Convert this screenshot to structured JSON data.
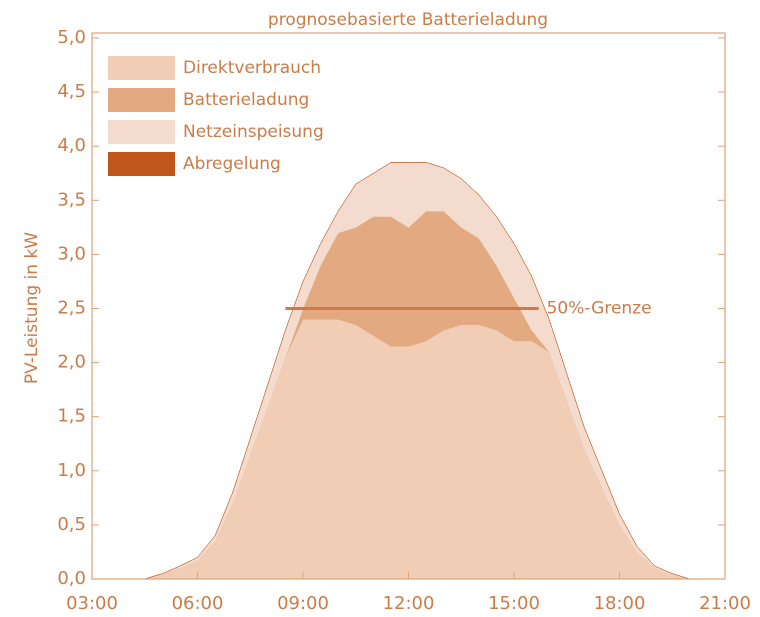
{
  "chart_data": {
    "type": "stacked_area",
    "title": "prognosebasierte Batterieladung",
    "y_label": "PV-Leistung in kW",
    "x": [
      4.5,
      5,
      5.5,
      6,
      6.5,
      7,
      7.5,
      8,
      8.5,
      9,
      9.5,
      10,
      10.5,
      11,
      11.5,
      12,
      12.5,
      13,
      13.5,
      14,
      14.5,
      15,
      15.5,
      16,
      16.5,
      17,
      17.5,
      18,
      18.5,
      19,
      19.5,
      20
    ],
    "series": [
      {
        "name": "Direktverbrauch",
        "color": "#f1cdb5",
        "values": [
          0,
          0.05,
          0.1,
          0.17,
          0.35,
          0.7,
          1.15,
          1.6,
          2.05,
          2.4,
          2.4,
          2.4,
          2.35,
          2.25,
          2.15,
          2.15,
          2.2,
          2.3,
          2.35,
          2.35,
          2.3,
          2.2,
          2.2,
          2.1,
          1.65,
          1.2,
          0.85,
          0.5,
          0.25,
          0.1,
          0.04,
          0
        ]
      },
      {
        "name": "Batterieladung",
        "color": "#e3aa82",
        "values": [
          0,
          0,
          0,
          0,
          0,
          0,
          0,
          0,
          0,
          0.1,
          0.5,
          0.8,
          0.9,
          1.1,
          1.2,
          1.1,
          1.2,
          1.1,
          0.9,
          0.8,
          0.6,
          0.4,
          0.1,
          0,
          0,
          0,
          0,
          0,
          0,
          0,
          0,
          0
        ]
      },
      {
        "name": "Netzeinspeisung",
        "color": "#f3dccd",
        "values": [
          0,
          0,
          0.02,
          0.03,
          0.05,
          0.1,
          0.15,
          0.2,
          0.25,
          0.25,
          0.2,
          0.2,
          0.4,
          0.4,
          0.5,
          0.6,
          0.45,
          0.4,
          0.45,
          0.4,
          0.45,
          0.5,
          0.5,
          0.3,
          0.25,
          0.2,
          0.15,
          0.1,
          0.05,
          0.02,
          0.01,
          0
        ]
      },
      {
        "name": "Abregelung",
        "color": "#c0561a",
        "values": [
          0,
          0,
          0,
          0,
          0,
          0,
          0,
          0,
          0,
          0,
          0,
          0,
          0,
          0,
          0,
          0,
          0,
          0,
          0,
          0,
          0,
          0,
          0,
          0,
          0,
          0,
          0,
          0,
          0,
          0,
          0,
          0
        ]
      }
    ],
    "limit_line": {
      "label": "50%-Grenze",
      "value": 2.5,
      "x": [
        8.5,
        15.7
      ],
      "color": "#d0784a"
    },
    "xlim": [
      3,
      21
    ],
    "xticks": [
      {
        "value": 3,
        "label": "03:00"
      },
      {
        "value": 6,
        "label": "06:00"
      },
      {
        "value": 9,
        "label": "09:00"
      },
      {
        "value": 12,
        "label": "12:00"
      },
      {
        "value": 15,
        "label": "15:00"
      },
      {
        "value": 18,
        "label": "18:00"
      },
      {
        "value": 21,
        "label": "21:00"
      }
    ],
    "ylim": [
      0,
      5
    ],
    "yticks": [
      {
        "value": 0,
        "label": "0,0"
      },
      {
        "value": 0.5,
        "label": "0,5"
      },
      {
        "value": 1,
        "label": "1,0"
      },
      {
        "value": 1.5,
        "label": "1,5"
      },
      {
        "value": 2,
        "label": "2,0"
      },
      {
        "value": 2.5,
        "label": "2,5"
      },
      {
        "value": 3,
        "label": "3,0"
      },
      {
        "value": 3.5,
        "label": "3,5"
      },
      {
        "value": 4,
        "label": "4,0"
      },
      {
        "value": 4.5,
        "label": "4,5"
      },
      {
        "value": 5,
        "label": "5,0"
      }
    ],
    "axis_color": "#e0a27a",
    "legend": "upper left"
  }
}
